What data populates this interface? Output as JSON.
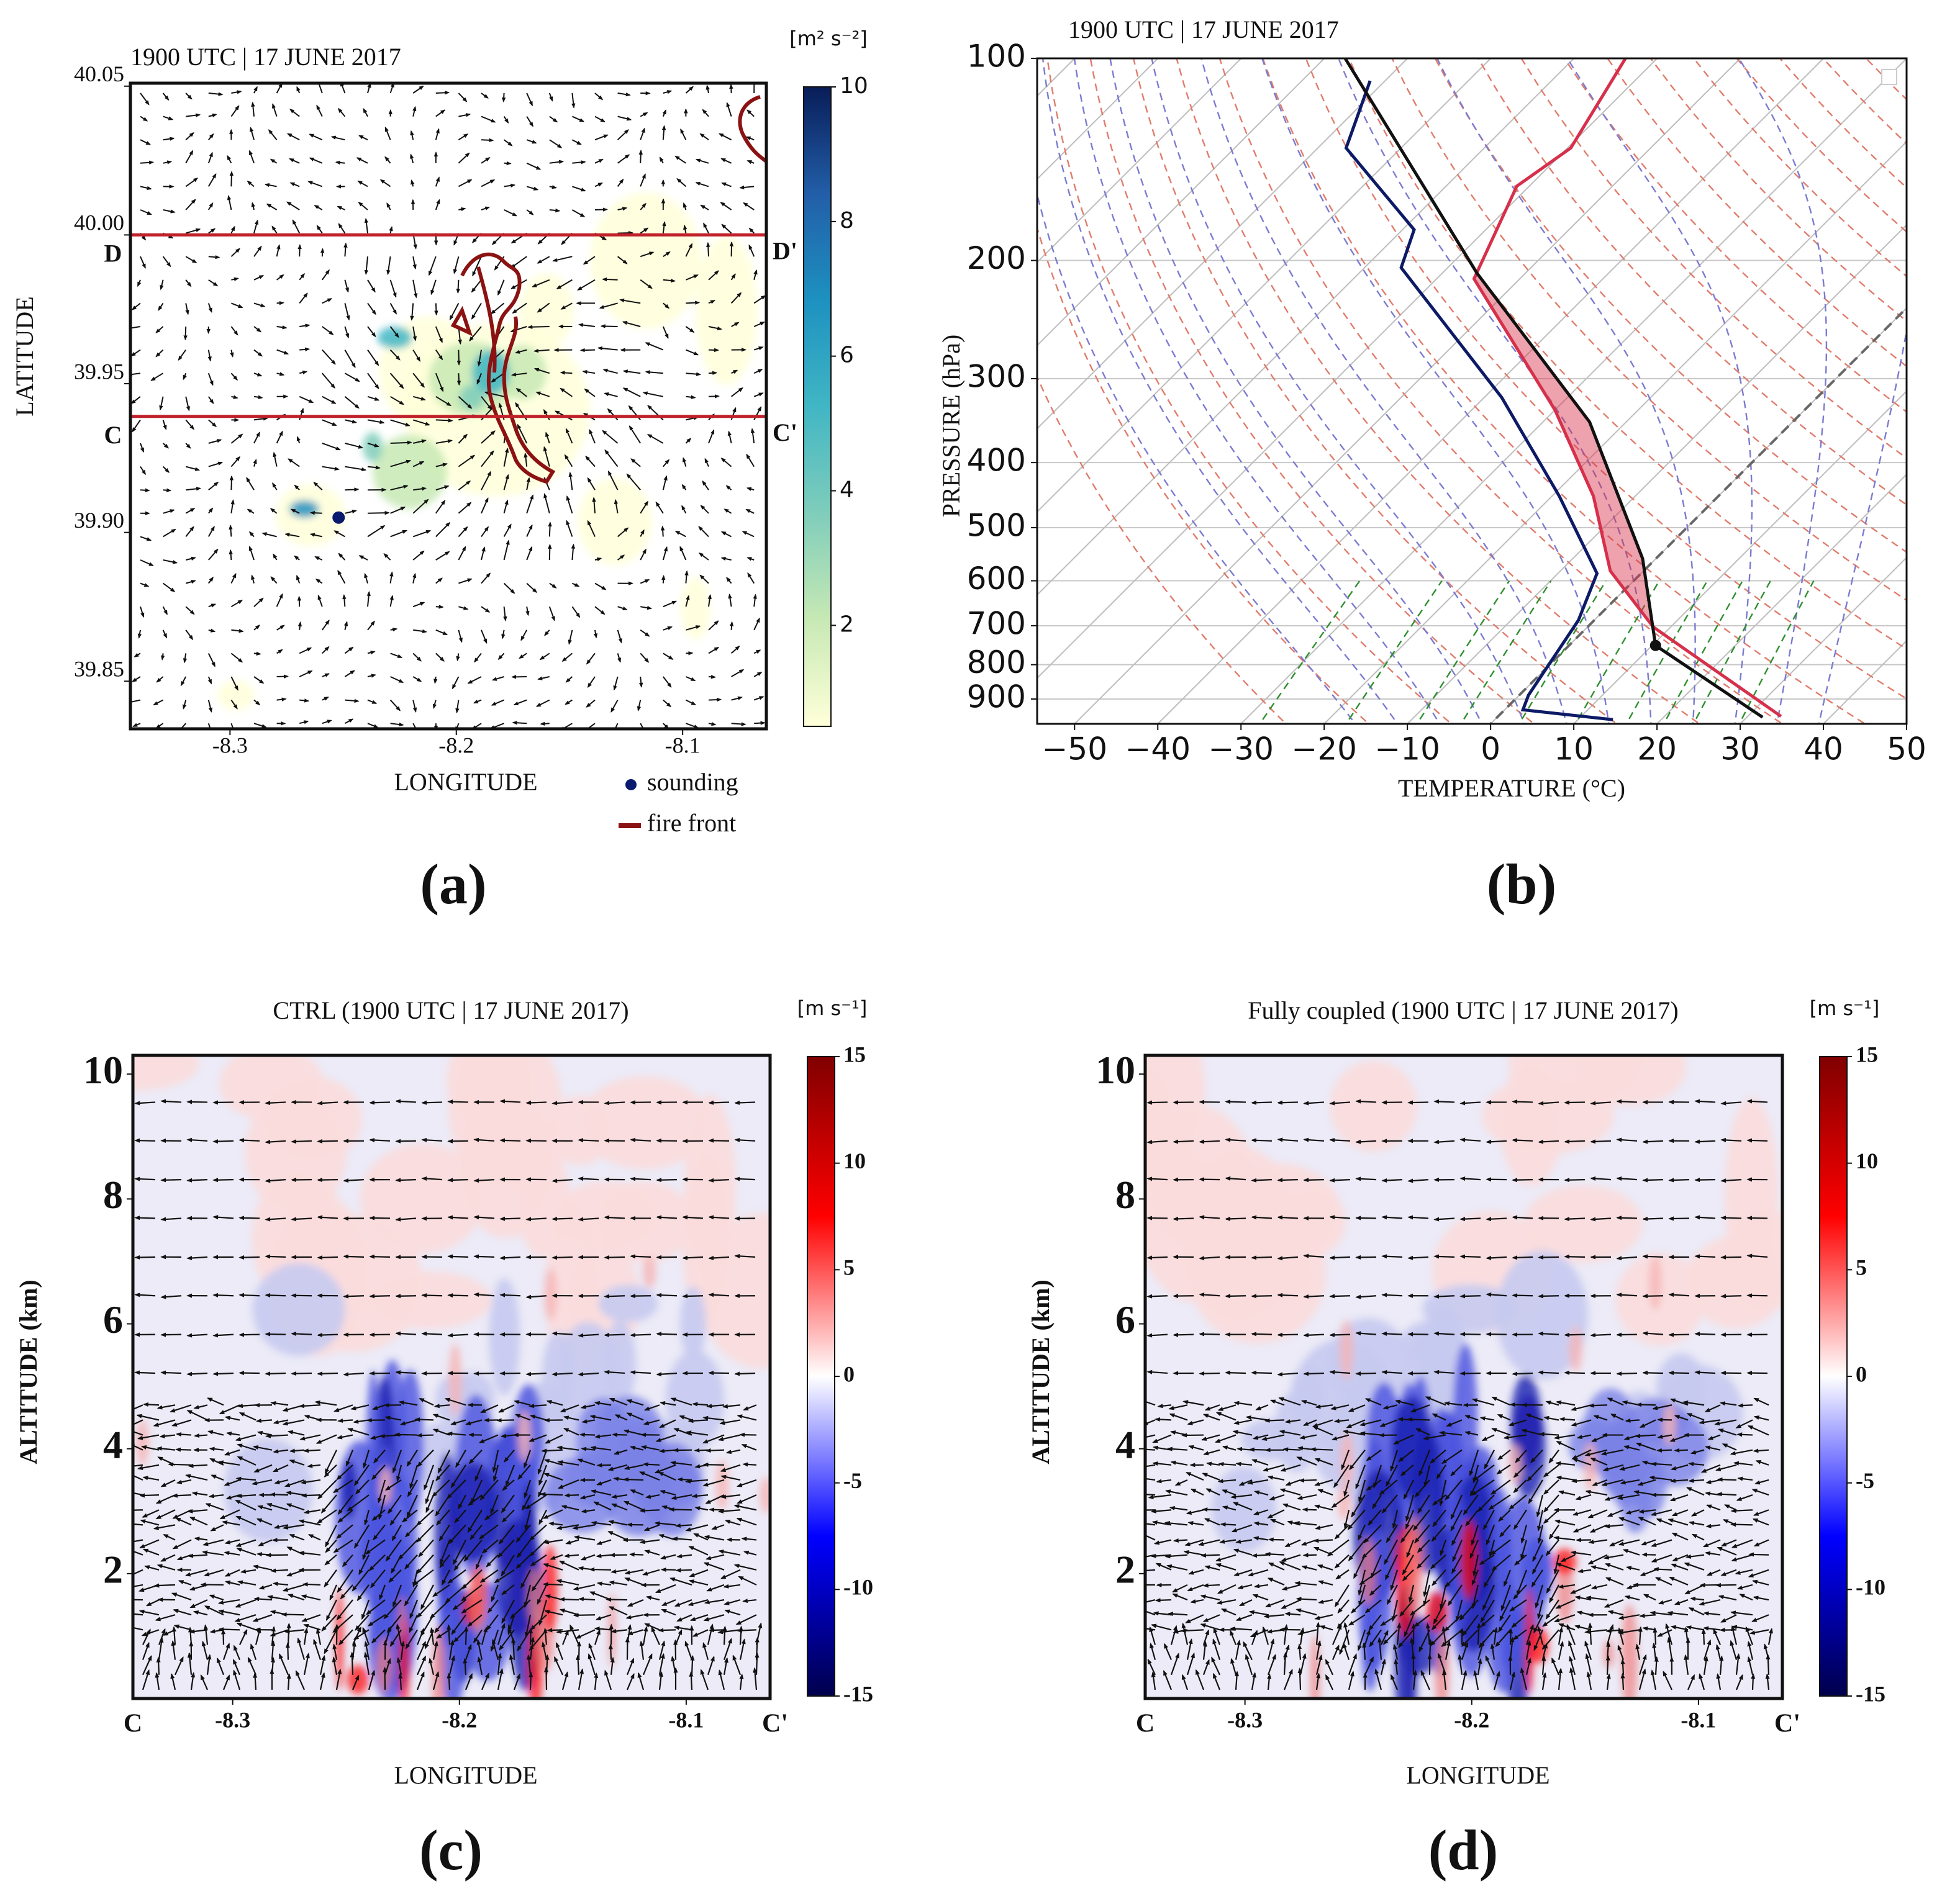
{
  "chart_data": [
    {
      "type": "map",
      "title": "1900 UTC | 17 JUNE 2017",
      "panel": "(a)",
      "x_label": "LONGITUDE",
      "y_label": "LATITUDE",
      "xlim": [
        -8.344,
        -8.063
      ],
      "xticks": [
        -8.3,
        -8.2,
        -8.1
      ],
      "ylim": [
        39.834,
        40.051
      ],
      "yticks": [
        39.85,
        {
          "value": 39.9,
          "label": "39.90"
        },
        39.95,
        {
          "value": 40,
          "label": "40.00"
        },
        40.05
      ],
      "sections": [
        {
          "lat": 40,
          "start": "D",
          "end": "D'",
          "color": "#c0202a"
        },
        {
          "lat": 39.939,
          "start": "C",
          "end": "C'",
          "color": "#c0202a"
        }
      ],
      "sounding": {
        "name": "sounding",
        "lon": -8.252,
        "lat": 39.905,
        "color": "#0a1a6e"
      },
      "fire_front": {
        "name": "fire front",
        "color": "#8b1212"
      },
      "colorbar": {
        "label": "[m² s⁻²]",
        "lim": [
          0.5,
          10
        ],
        "ticks": [
          2,
          4,
          6,
          8,
          10
        ],
        "colors": [
          "#ffffd9",
          "#c7e9b4",
          "#7fcdbb",
          "#41b6c4",
          "#1d91c0",
          "#225ea8",
          "#081d58"
        ]
      }
    },
    {
      "type": "skewt",
      "title": "1900 UTC | 17 JUNE 2017",
      "panel": "(b)",
      "x_label": "TEMPERATURE (°C)",
      "y_label": "PRESSURE (hPa)",
      "xlim": [
        -54.5,
        50
      ],
      "xticks": [
        {
          "value": -50,
          "label": "−50"
        },
        {
          "value": -40,
          "label": "−40"
        },
        {
          "value": -30,
          "label": "−30"
        },
        {
          "value": -20,
          "label": "−20"
        },
        {
          "value": -10,
          "label": "−10"
        },
        0,
        10,
        20,
        30,
        40,
        50
      ],
      "ylim": [
        980,
        100
      ],
      "log_y": true,
      "yticks": [
        100,
        200,
        300,
        400,
        500,
        600,
        700,
        800,
        900
      ],
      "series": [
        {
          "color": "#d6304a",
          "pressure": [
            955,
            703,
            580,
            449,
            334,
            213,
            155,
            136,
            100
          ],
          "values": [
            34,
            7.9,
            -4,
            -15,
            -30,
            -55.5,
            -61.5,
            -59.6,
            -63.8
          ]
        },
        {
          "color": "#0d1a66",
          "pressure": [
            966,
            934,
            888,
            687,
            585,
            449,
            320,
            205,
            180,
            136,
            108
          ],
          "values": [
            14.2,
            2.2,
            1.1,
            -1.9,
            -5.3,
            -19.1,
            -37.9,
            -65.6,
            -68.6,
            -86.6,
            -91.8
          ]
        },
        {
          "color": "#111111",
          "pressure": [
            958,
            749,
            556,
            348,
            209,
            100
          ],
          "values": [
            31.9,
            10.4,
            -1.6,
            -24.4,
            -55.8,
            -97.5
          ]
        }
      ],
      "lcl": {
        "pressure": 749,
        "temperature": 10.4
      }
    },
    {
      "type": "cross_section",
      "title": "CTRL (1900 UTC | 17 JUNE 2017)",
      "panel": "(c)",
      "x_label": "LONGITUDE",
      "y_label": "ALTITUDE (km)",
      "start": "C",
      "end": "C'",
      "xlim": [
        -8.344,
        -8.063
      ],
      "xticks": [
        -8.3,
        -8.2,
        -8.1
      ],
      "ylim": [
        0,
        10.3
      ],
      "yticks": [
        2,
        4,
        6,
        8,
        10
      ],
      "colorbar": {
        "label": "[m s⁻¹]",
        "lim": [
          -15,
          15
        ],
        "ticks": [
          -15,
          -10,
          -5,
          0,
          5,
          10,
          15
        ],
        "colors": [
          "#00004c",
          "#0000ff",
          "#ffffff",
          "#ff0000",
          "#800000"
        ]
      }
    },
    {
      "type": "cross_section",
      "title": "Fully coupled (1900 UTC | 17 JUNE 2017)",
      "panel": "(d)",
      "x_label": "LONGITUDE",
      "y_label": "ALTITUDE (km)",
      "start": "C",
      "end": "C'",
      "xlim": [
        -8.344,
        -8.063
      ],
      "xticks": [
        -8.3,
        -8.2,
        -8.1
      ],
      "ylim": [
        0,
        10.3
      ],
      "yticks": [
        2,
        4,
        6,
        8,
        10
      ],
      "colorbar": {
        "label": "[m s⁻¹]",
        "lim": [
          -15,
          15
        ],
        "ticks": [
          -15,
          -10,
          -5,
          0,
          5,
          10,
          15
        ],
        "colors": [
          "#00004c",
          "#0000ff",
          "#ffffff",
          "#ff0000",
          "#800000"
        ]
      }
    }
  ]
}
